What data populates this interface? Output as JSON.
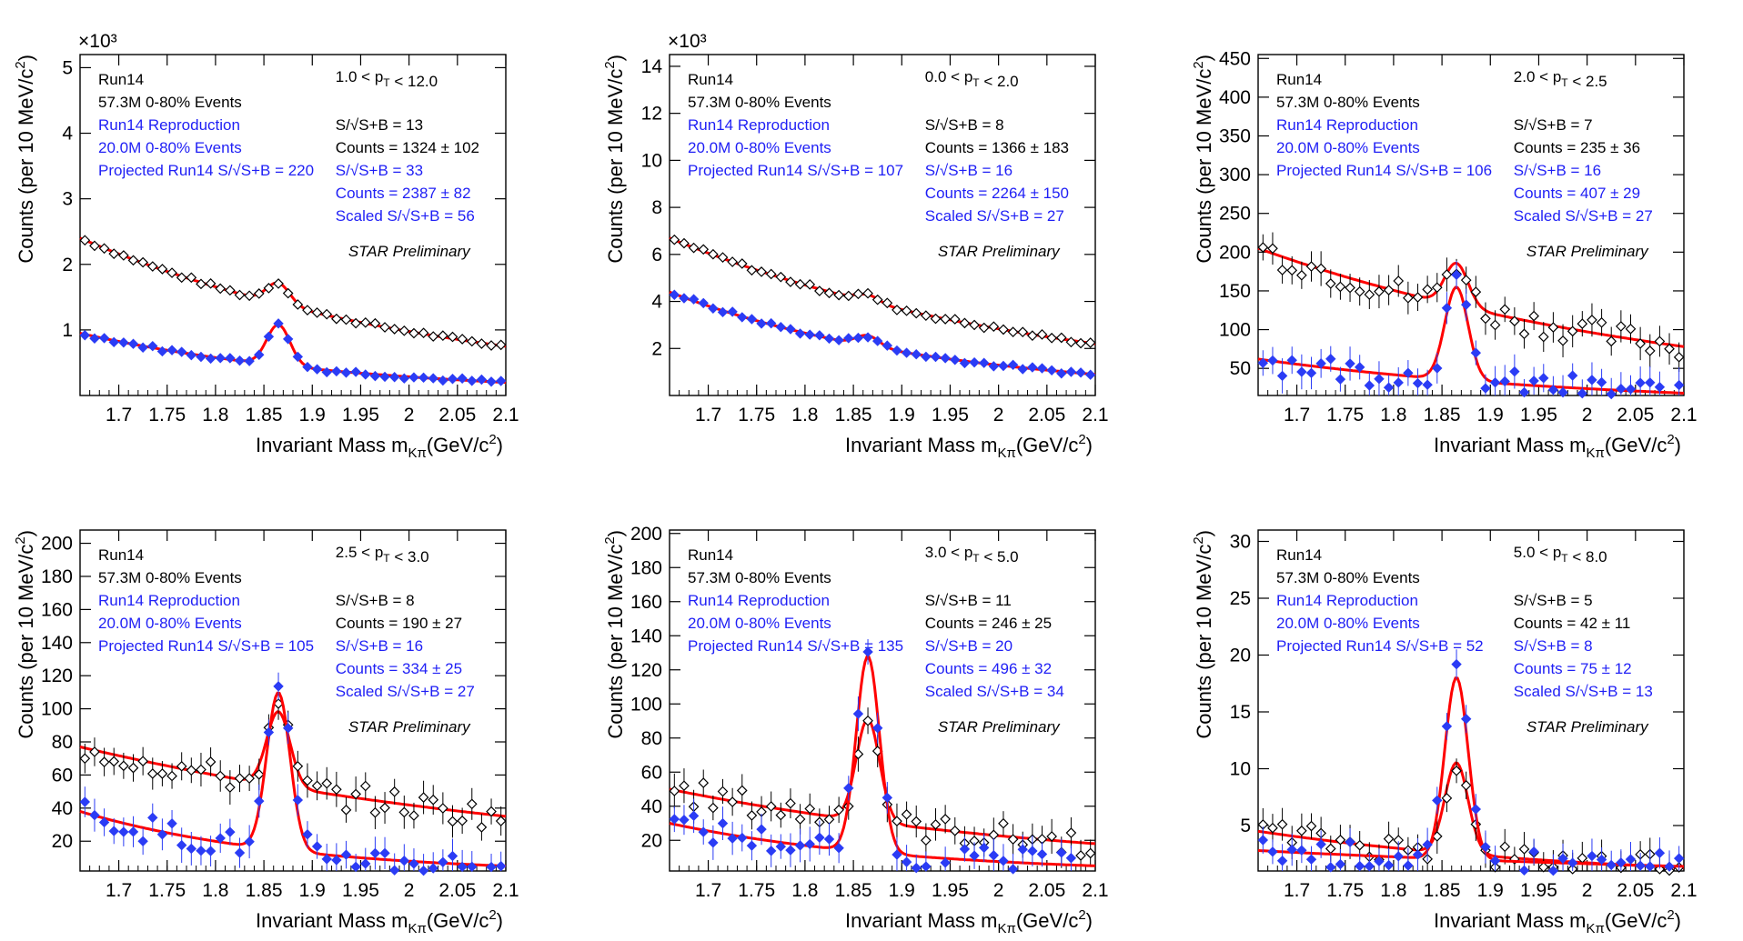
{
  "colors": {
    "black_series": "#000000",
    "blue_series": "#2b3cf5",
    "fit": "#ff0000",
    "blue_text": "#1f1ff5"
  },
  "chart_data": [
    {
      "type": "scatter",
      "xlabel": "Invariant Mass m",
      "xlabel_sub": "Kπ",
      "xlabel_unit": "(GeV/c",
      "ylabel": "Counts (per 10 MeV/c",
      "xlim": [
        1.66,
        2.1
      ],
      "ylim": [
        0,
        5.2
      ],
      "exponent": "×10³",
      "x_ticks": [
        "1.7",
        "1.75",
        "1.8",
        "1.85",
        "1.9",
        "1.95",
        "2",
        "2.05",
        "2.1"
      ],
      "y_ticks": [
        1,
        2,
        3,
        4,
        5
      ],
      "info_left": [
        "Run14",
        "57.3M 0-80% Events"
      ],
      "info_left_blue": [
        "Run14 Reproduction",
        "20.0M 0-80% Events",
        "Projected Run14 S/√S+B = 220"
      ],
      "pt_range": "1.0 < p_T < 12.0",
      "info_right": [
        "S/√S+B = 13",
        "Counts = 1324 ± 102"
      ],
      "info_right_blue": [
        "S/√S+B = 33",
        "Counts = 2387 ± 82",
        "Scaled S/√S+B = 56"
      ],
      "preliminary": "STAR Preliminary",
      "series": [
        {
          "style": "open",
          "background": [
            2.4,
            0.75
          ],
          "peak": 0.32
        },
        {
          "style": "filled",
          "background": [
            0.95,
            0.2
          ],
          "peak": 0.62
        }
      ]
    },
    {
      "type": "scatter",
      "xlabel": "Invariant Mass m",
      "xlabel_sub": "Kπ",
      "xlabel_unit": "(GeV/c",
      "ylabel": "Counts (per 10 MeV/c",
      "xlim": [
        1.66,
        2.1
      ],
      "ylim": [
        0,
        14.5
      ],
      "exponent": "×10³",
      "x_ticks": [
        "1.7",
        "1.75",
        "1.8",
        "1.85",
        "1.9",
        "1.95",
        "2",
        "2.05",
        "2.1"
      ],
      "y_ticks": [
        2,
        4,
        6,
        8,
        10,
        12,
        14
      ],
      "info_left": [
        "Run14",
        "57.3M 0-80% Events"
      ],
      "info_left_blue": [
        "Run14 Reproduction",
        "20.0M 0-80% Events",
        "Projected Run14 S/√S+B = 107"
      ],
      "pt_range": "0.0 < p_T < 2.0",
      "info_right": [
        "S/√S+B = 8",
        "Counts = 1366 ± 183"
      ],
      "info_right_blue": [
        "S/√S+B = 16",
        "Counts = 2264 ± 150",
        "Scaled S/√S+B = 27"
      ],
      "preliminary": "STAR Preliminary",
      "series": [
        {
          "style": "open",
          "background": [
            6.7,
            2.2
          ],
          "peak": 0.3
        },
        {
          "style": "filled",
          "background": [
            4.4,
            0.9
          ],
          "peak": 0.45
        }
      ]
    },
    {
      "type": "scatter",
      "xlabel": "Invariant Mass m",
      "xlabel_sub": "Kπ",
      "xlabel_unit": "(GeV/c",
      "ylabel": "Counts (per 10 MeV/c",
      "xlim": [
        1.66,
        2.1
      ],
      "ylim": [
        15,
        455
      ],
      "exponent": "",
      "x_ticks": [
        "1.7",
        "1.75",
        "1.8",
        "1.85",
        "1.9",
        "1.95",
        "2",
        "2.05",
        "2.1"
      ],
      "y_ticks": [
        50,
        100,
        150,
        200,
        250,
        300,
        350,
        400,
        450
      ],
      "info_left": [
        "Run14",
        "57.3M 0-80% Events"
      ],
      "info_left_blue": [
        "Run14 Reproduction",
        "20.0M 0-80% Events",
        "Projected Run14 S/√S+B = 106"
      ],
      "pt_range": "2.0 < p_T < 2.5",
      "info_right": [
        "S/√S+B = 7",
        "Counts = 235 ± 36"
      ],
      "info_right_blue": [
        "S/√S+B = 16",
        "Counts = 407 ± 29",
        "Scaled S/√S+B = 27"
      ],
      "preliminary": "STAR Preliminary",
      "series": [
        {
          "style": "open",
          "background": [
            205,
            78
          ],
          "peak": 55
        },
        {
          "style": "filled",
          "background": [
            62,
            18
          ],
          "peak": 120
        }
      ]
    },
    {
      "type": "scatter",
      "xlabel": "Invariant Mass m",
      "xlabel_sub": "Kπ",
      "xlabel_unit": "(GeV/c",
      "ylabel": "Counts (per 10 MeV/c",
      "xlim": [
        1.66,
        2.1
      ],
      "ylim": [
        2,
        208
      ],
      "exponent": "",
      "x_ticks": [
        "1.7",
        "1.75",
        "1.8",
        "1.85",
        "1.9",
        "1.95",
        "2",
        "2.05",
        "2.1"
      ],
      "y_ticks": [
        20,
        40,
        60,
        80,
        100,
        120,
        140,
        160,
        180,
        200
      ],
      "info_left": [
        "Run14",
        "57.3M 0-80% Events"
      ],
      "info_left_blue": [
        "Run14 Reproduction",
        "20.0M 0-80% Events",
        "Projected Run14 S/√S+B = 105"
      ],
      "pt_range": "2.5 < p_T < 3.0",
      "info_right": [
        "S/√S+B = 8",
        "Counts = 190 ± 27"
      ],
      "info_right_blue": [
        "S/√S+B = 16",
        "Counts = 334 ± 25",
        "Scaled S/√S+B = 27"
      ],
      "preliminary": "STAR Preliminary",
      "series": [
        {
          "style": "open",
          "background": [
            77,
            35
          ],
          "peak": 45
        },
        {
          "style": "filled",
          "background": [
            38,
            5
          ],
          "peak": 95
        }
      ]
    },
    {
      "type": "scatter",
      "xlabel": "Invariant Mass m",
      "xlabel_sub": "Kπ",
      "xlabel_unit": "(GeV/c",
      "ylabel": "Counts (per 10 MeV/c",
      "xlim": [
        1.66,
        2.1
      ],
      "ylim": [
        2,
        202
      ],
      "exponent": "",
      "x_ticks": [
        "1.7",
        "1.75",
        "1.8",
        "1.85",
        "1.9",
        "1.95",
        "2",
        "2.05",
        "2.1"
      ],
      "y_ticks": [
        20,
        40,
        60,
        80,
        100,
        120,
        140,
        160,
        180,
        200
      ],
      "info_left": [
        "Run14",
        "57.3M 0-80% Events"
      ],
      "info_left_blue": [
        "Run14 Reproduction",
        "20.0M 0-80% Events",
        "Projected Run14 S/√S+B = 135"
      ],
      "pt_range": "3.0 < p_T < 5.0",
      "info_right": [
        "S/√S+B = 11",
        "Counts = 246 ± 25"
      ],
      "info_right_blue": [
        "S/√S+B = 20",
        "Counts = 496 ± 32",
        "Scaled S/√S+B = 34"
      ],
      "preliminary": "STAR Preliminary",
      "series": [
        {
          "style": "open",
          "background": [
            50,
            18
          ],
          "peak": 60
        },
        {
          "style": "filled",
          "background": [
            30,
            5
          ],
          "peak": 115
        }
      ]
    },
    {
      "type": "scatter",
      "xlabel": "Invariant Mass m",
      "xlabel_sub": "Kπ",
      "xlabel_unit": "(GeV/c",
      "ylabel": "Counts (per 10 MeV/c",
      "xlim": [
        1.66,
        2.1
      ],
      "ylim": [
        1,
        31
      ],
      "exponent": "",
      "x_ticks": [
        "1.7",
        "1.75",
        "1.8",
        "1.85",
        "1.9",
        "1.95",
        "2",
        "2.05",
        "2.1"
      ],
      "y_ticks": [
        5,
        10,
        15,
        20,
        25,
        30
      ],
      "info_left": [
        "Run14",
        "57.3M 0-80% Events"
      ],
      "info_left_blue": [
        "Run14 Reproduction",
        "20.0M 0-80% Events",
        "Projected Run14 S/√S+B = 52"
      ],
      "pt_range": "5.0 < p_T < 8.0",
      "info_right": [
        "S/√S+B = 5",
        "Counts = 42 ± 11"
      ],
      "info_right_blue": [
        "S/√S+B = 8",
        "Counts = 75 ± 12",
        "Scaled S/√S+B = 13"
      ],
      "preliminary": "STAR Preliminary",
      "series": [
        {
          "style": "open",
          "background": [
            4.5,
            1.3
          ],
          "peak": 8
        },
        {
          "style": "filled",
          "background": [
            2.8,
            1.4
          ],
          "peak": 16
        }
      ]
    }
  ]
}
